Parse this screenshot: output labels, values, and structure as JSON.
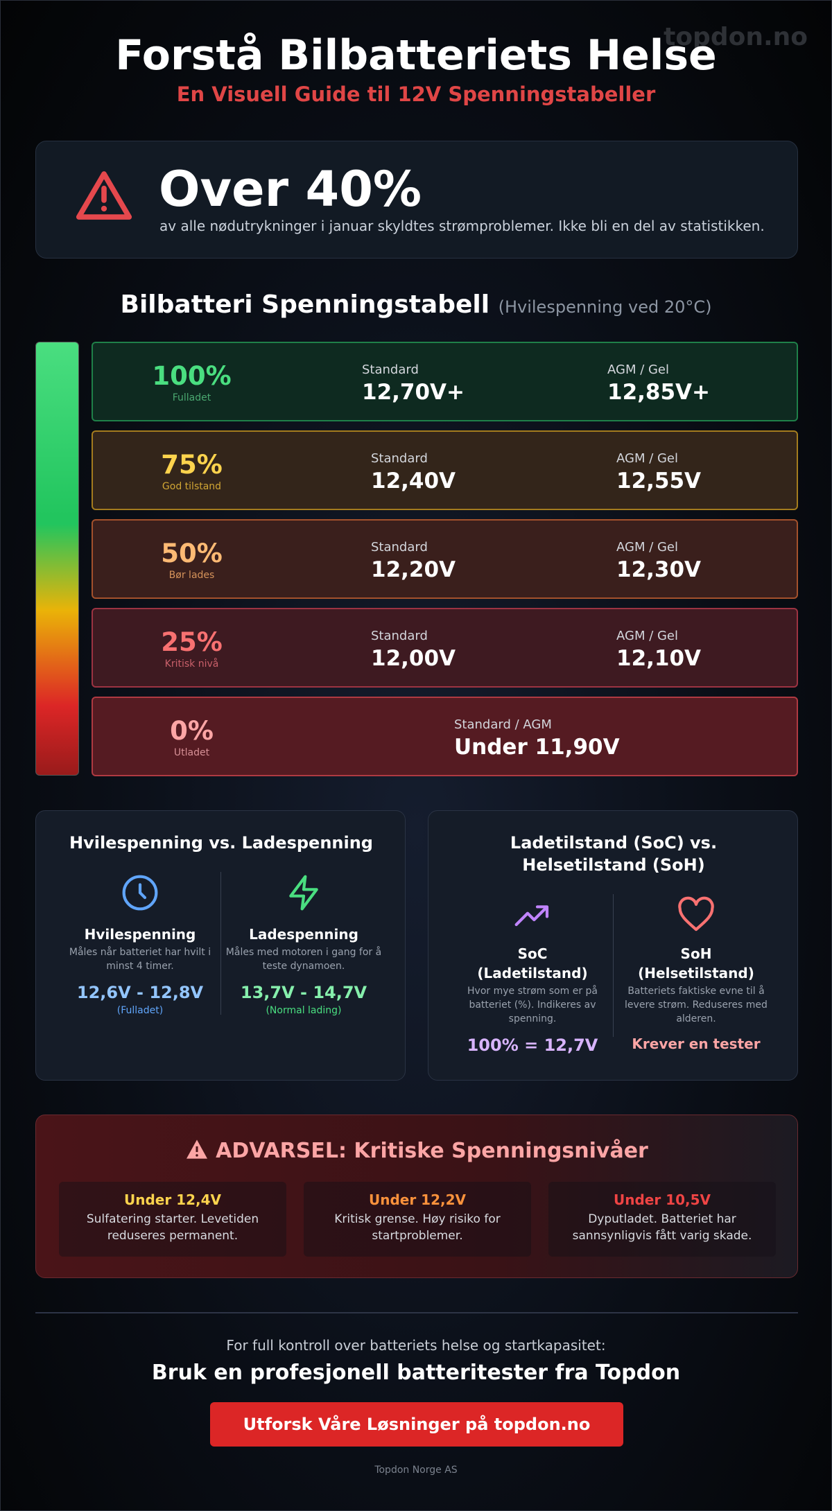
{
  "header": {
    "title": "Forstå Bilbatteriets Helse",
    "subtitle": "En Visuell Guide til 12V Spenningstabeller",
    "watermark": "topdon.no"
  },
  "stat": {
    "value": "Over 40%",
    "text": "av alle nødutrykninger i januar skyldtes strømproblemer. Ikke bli en del av statistikken."
  },
  "table": {
    "title": "Bilbatteri Spenningstabell",
    "subtitle": "(Hvilespenning ved 20°C)",
    "rows": [
      {
        "percent": "100%",
        "status": "Fulladet",
        "columns": [
          {
            "label": "Standard",
            "value": "12,70V+"
          },
          {
            "label": "AGM / Gel",
            "value": "12,85V+"
          }
        ]
      },
      {
        "percent": "75%",
        "status": "God tilstand",
        "columns": [
          {
            "label": "Standard",
            "value": "12,40V"
          },
          {
            "label": "AGM / Gel",
            "value": "12,55V"
          }
        ]
      },
      {
        "percent": "50%",
        "status": "Bør lades",
        "columns": [
          {
            "label": "Standard",
            "value": "12,20V"
          },
          {
            "label": "AGM / Gel",
            "value": "12,30V"
          }
        ]
      },
      {
        "percent": "25%",
        "status": "Kritisk nivå",
        "columns": [
          {
            "label": "Standard",
            "value": "12,00V"
          },
          {
            "label": "AGM / Gel",
            "value": "12,10V"
          }
        ]
      },
      {
        "percent": "0%",
        "status": "Utladet",
        "columns": [
          {
            "label": "Standard / AGM",
            "value": "Under 11,90V"
          }
        ]
      }
    ]
  },
  "cards": [
    {
      "title": "Hvilespenning vs. Ladespenning",
      "items": [
        {
          "title": "Hvilespenning",
          "text": "Måles når batteriet har hvilt i minst 4 timer.",
          "value": "12,6V - 12,8V",
          "note": "(Fulladet)"
        },
        {
          "title": "Ladespenning",
          "text": "Måles med motoren i gang for å teste dynamoen.",
          "value": "13,7V - 14,7V",
          "note": "(Normal lading)"
        }
      ]
    },
    {
      "title": "Ladetilstand (SoC) vs. Helsetilstand (SoH)",
      "items": [
        {
          "title": "SoC",
          "subtitle": "(Ladetilstand)",
          "text": "Hvor mye strøm som er på batteriet (%). Indikeres av spenning.",
          "value": "100% = 12,7V"
        },
        {
          "title": "SoH",
          "subtitle": "(Helsetilstand)",
          "text": "Batteriets faktiske evne til å levere strøm. Reduseres med alderen.",
          "value": "Krever en tester"
        }
      ]
    }
  ],
  "warning": {
    "title": "ADVARSEL: Kritiske Spenningsnivåer",
    "items": [
      {
        "title": "Under 12,4V",
        "text": "Sulfatering starter. Levetiden reduseres permanent."
      },
      {
        "title": "Under 12,2V",
        "text": "Kritisk grense. Høy risiko for startproblemer."
      },
      {
        "title": "Under 10,5V",
        "text": "Dyputladet. Batteriet har sannsynligvis fått varig skade."
      }
    ]
  },
  "footer": {
    "lead": "For full kontroll over batteriets helse og startkapasitet:",
    "headline": "Bruk en profesjonell batteritester fra Topdon",
    "button": "Utforsk Våre Løsninger på topdon.no",
    "copyright": "Topdon Norge AS"
  }
}
